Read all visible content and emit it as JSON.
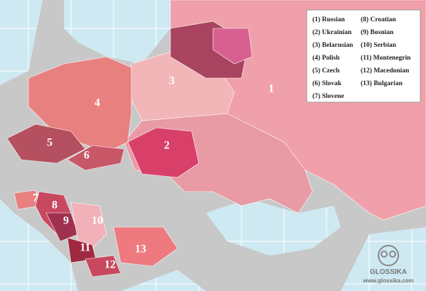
{
  "map": {
    "labels": [
      "1",
      "2",
      "3",
      "4",
      "5",
      "6",
      "7",
      "8",
      "9",
      "10",
      "11",
      "12",
      "13"
    ]
  },
  "legend": {
    "column_1": [
      "(1) Russian",
      "(2) Ukrainian",
      "(3) Belarusian",
      "(4) Polish",
      "(5) Czech",
      "(6) Slovak",
      "(7) Slovene"
    ],
    "column_2": [
      "(8) Croatian",
      "(9) Bosnian",
      "(10) Serbian",
      "(11) Montenegrin",
      "(12) Macedonian",
      "(13) Bulgarian"
    ]
  },
  "branding": {
    "name": "GLOSSIKA",
    "url": "www.glossika.com"
  }
}
